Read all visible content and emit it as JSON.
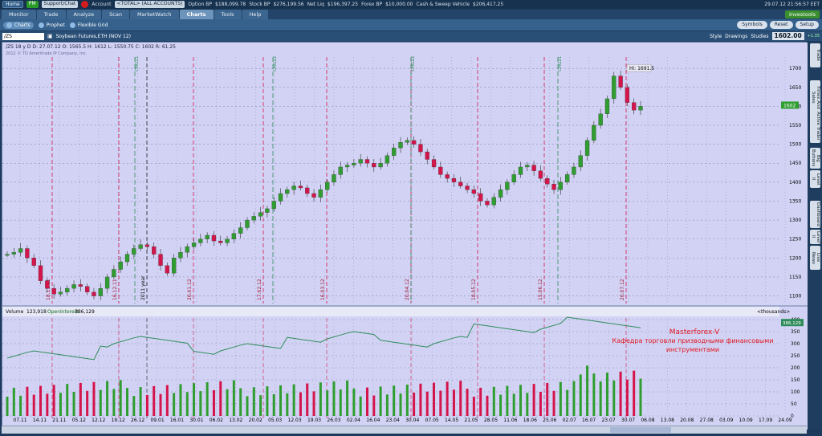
{
  "status": {
    "home": "Home",
    "pm": "PM",
    "support": "Support/Chat",
    "account_label": "Account",
    "account_value": "<TOTAL> (ALL ACCOUNTS)",
    "option_bp_label": "Option BP",
    "option_bp": "$188,099.78",
    "stock_bp_label": "Stock BP",
    "stock_bp": "$276,199.56",
    "net_liq_label": "Net Liq",
    "net_liq": "$196,397.25",
    "forex_bp_label": "Forex BP",
    "forex_bp": "$10,000.00",
    "cash_label": "Cash & Sweep Vehicle",
    "cash": "$206,417.25",
    "timestamp": "29.07.12 21:56:57 EET"
  },
  "tabs": [
    "Monitor",
    "Trade",
    "Analyze",
    "Scan",
    "MarketWatch",
    "Charts",
    "Tools",
    "Help"
  ],
  "investools": "Investools",
  "subtabs": [
    "Charts",
    "Prophet",
    "Flexible Grid"
  ],
  "sub_buttons": [
    "Symbols",
    "Reset",
    "Setup"
  ],
  "symbol": {
    "value": "/ZS",
    "description": "Soybean Futures,ETH (NOV 12)",
    "buttons": [
      "Style",
      "Drawings",
      "Studies"
    ],
    "price": "1602.00",
    "change": "+1.35"
  },
  "rail": [
    "Trade",
    "Times And Sales",
    "Active Trader",
    "Big Buttons",
    "Level II",
    "Dashboard",
    "Level II",
    "Live News"
  ],
  "colors": {
    "bull": "#2f9d2f",
    "bear": "#d4144a",
    "bg": "#d2d3f4",
    "grid": "#7a7aa8",
    "vol_line": "#2f8c5a"
  },
  "chart_data": {
    "type": "candlestick",
    "header": {
      "symbol": "/ZS 18 y D",
      "date": "D: 27.07.12",
      "open": "O: 1565.5",
      "high": "H: 1612",
      "low": "L: 1550.75",
      "close": "C: 1602",
      "range": "R: 61.25"
    },
    "copyright": "2012 © TD Ameritrade IP Company, Inc.",
    "price_ticks": [
      1100,
      1150,
      1200,
      1250,
      1300,
      1350,
      1400,
      1450,
      1500,
      1550,
      1600,
      1650,
      1700
    ],
    "ylim": [
      1080,
      1730
    ],
    "current_price_label": "1602",
    "hi_label": "Hi: 1691.5",
    "close_path": [
      1210,
      1215,
      1225,
      1200,
      1180,
      1140,
      1120,
      1105,
      1110,
      1120,
      1130,
      1125,
      1110,
      1100,
      1120,
      1150,
      1170,
      1190,
      1210,
      1225,
      1235,
      1230,
      1210,
      1180,
      1160,
      1200,
      1215,
      1230,
      1240,
      1250,
      1260,
      1245,
      1240,
      1250,
      1265,
      1280,
      1300,
      1310,
      1320,
      1330,
      1350,
      1370,
      1380,
      1390,
      1385,
      1370,
      1360,
      1380,
      1400,
      1420,
      1440,
      1445,
      1450,
      1460,
      1450,
      1440,
      1450,
      1470,
      1490,
      1505,
      1510,
      1500,
      1480,
      1460,
      1440,
      1420,
      1410,
      1400,
      1390,
      1380,
      1370,
      1350,
      1340,
      1360,
      1380,
      1400,
      1420,
      1440,
      1445,
      1430,
      1410,
      1395,
      1380,
      1400,
      1420,
      1440,
      1470,
      1510,
      1550,
      1580,
      1620,
      1680,
      1650,
      1610,
      1590,
      1600
    ],
    "volume_label": "Volume",
    "volume": "123,918",
    "oi_label": "OpenInterest",
    "oi": "386,129",
    "thousands": "<thousands>",
    "volume_ticks": [
      0,
      50,
      100,
      150,
      200,
      250,
      300,
      350,
      400
    ],
    "volume_current": "386,129",
    "x_ticks": [
      "07.11",
      "14.11",
      "21.11",
      "05.12",
      "12.12",
      "19.12",
      "26.12",
      "09.01",
      "16.01",
      "30.01",
      "06.02",
      "13.02",
      "20.02",
      "05.03",
      "12.03",
      "19.03",
      "26.03",
      "02.04",
      "16.04",
      "23.04",
      "30.04",
      "07.05",
      "14.05",
      "21.05",
      "28.05",
      "11.06",
      "18.06",
      "25.06",
      "02.07",
      "16.07",
      "23.07",
      "30.07",
      "06.08",
      "13.08",
      "20.08",
      "27.08",
      "03.09",
      "10.09",
      "17.09",
      "24.09"
    ],
    "event_labels": [
      "18.11.11",
      "16.12.11",
      "2011 year",
      "20.01.12",
      "17.02.12",
      "16.03.12",
      "20.04.12",
      "18.05.12",
      "15.06.12",
      "20.07.12"
    ],
    "vertical_tags": [
      "CHG21",
      "CHG22",
      "CHG22",
      "CHG21"
    ]
  },
  "annotation": {
    "title": "Masterforex-V",
    "line1": "Кафедра торговли призводными финансовыми",
    "line2": "инструментами"
  }
}
